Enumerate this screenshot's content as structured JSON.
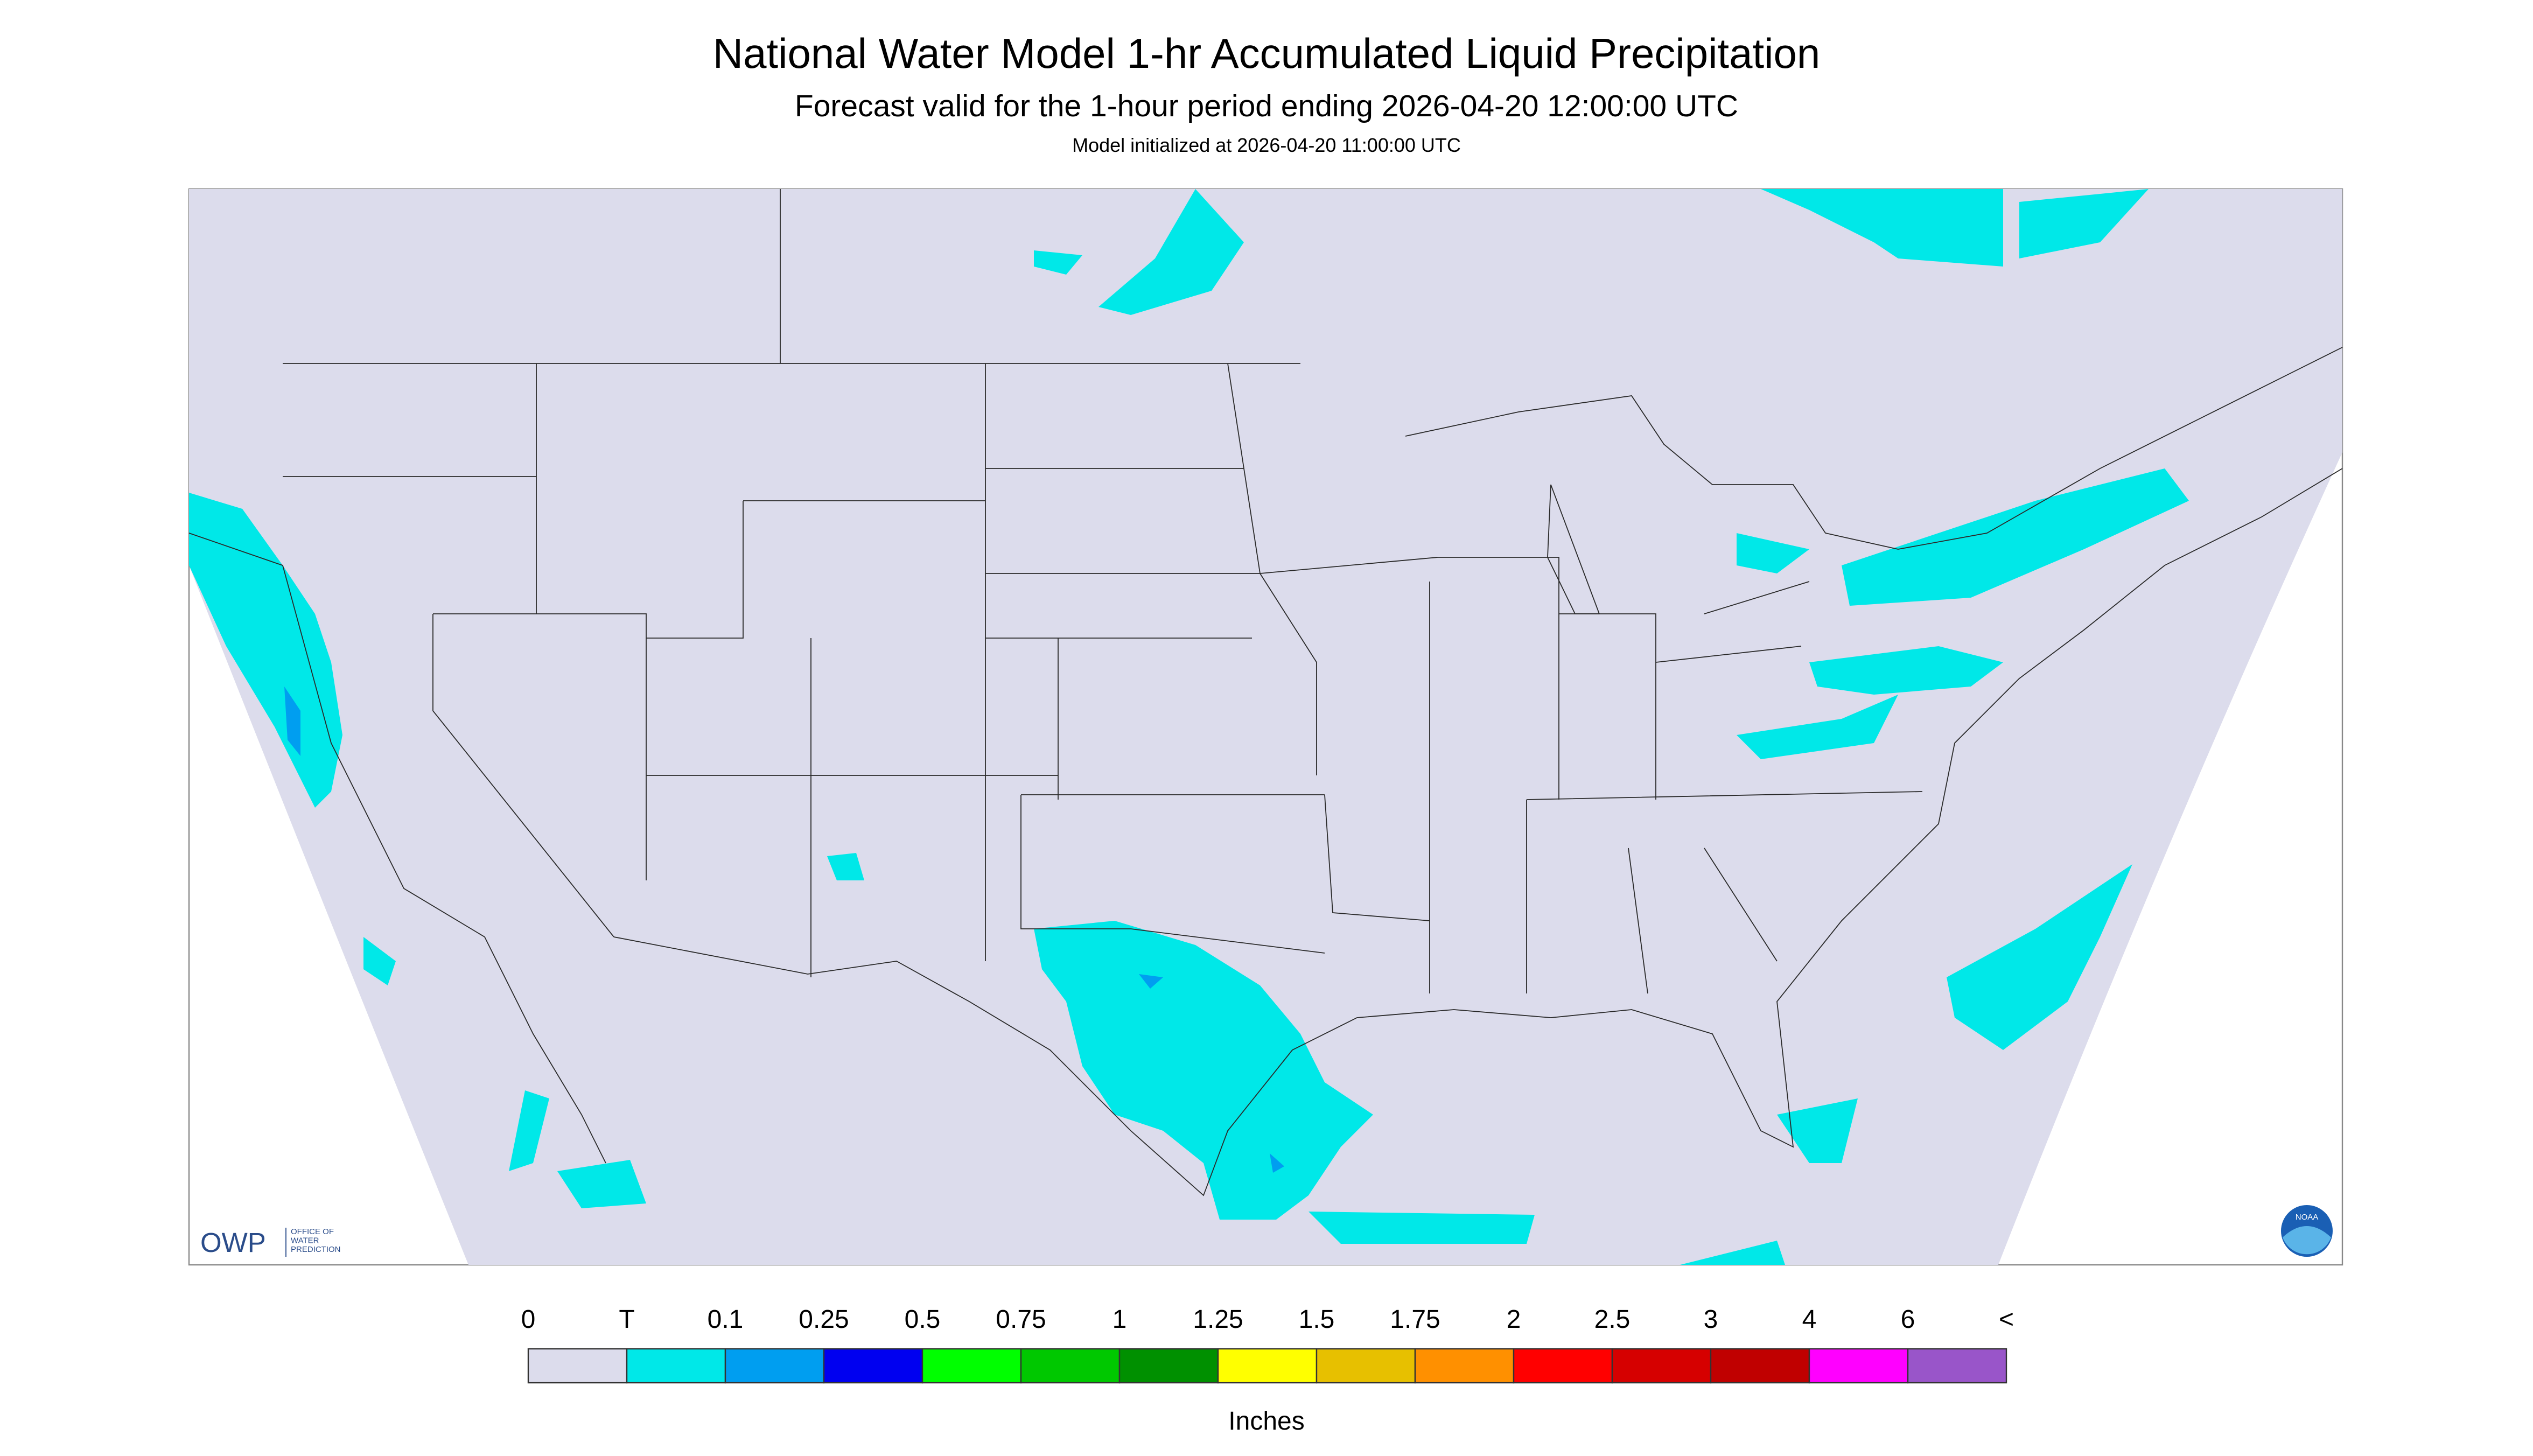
{
  "header": {
    "title": "National Water Model 1-hr Accumulated Liquid Precipitation",
    "subtitle": "Forecast valid for the 1-hour period ending 2026-04-20 12:00:00 UTC",
    "init": "Model initialized at 2026-04-20 11:00:00 UTC"
  },
  "logos": {
    "owp": "OWP",
    "owp_lines": [
      "OFFICE OF",
      "WATER",
      "PREDICTION"
    ],
    "noaa": "NOAA"
  },
  "legend": {
    "labels": [
      "0",
      "T",
      "0.1",
      "0.25",
      "0.5",
      "0.75",
      "1",
      "1.25",
      "1.5",
      "1.75",
      "2",
      "2.5",
      "3",
      "4",
      "6",
      "<"
    ],
    "colors": [
      "#dcdcec",
      "#00e8e8",
      "#009ef0",
      "#0000f0",
      "#00ff00",
      "#00c800",
      "#009000",
      "#ffff00",
      "#e7c000",
      "#ff9000",
      "#ff0000",
      "#d60000",
      "#c00000",
      "#ff00ff",
      "#9955c9"
    ],
    "units": "Inches"
  }
}
